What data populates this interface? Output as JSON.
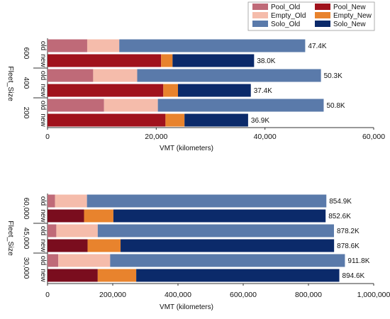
{
  "chart_data": [
    {
      "type": "bar",
      "orientation": "horizontal",
      "stacked": true,
      "title": "",
      "xlabel": "VMT (kilometers)",
      "ylabel": "Fleet_Size",
      "xlim": [
        0,
        60000
      ],
      "xticks": [
        "0",
        "20,000",
        "40,000",
        "60,000"
      ],
      "groups": [
        "600",
        "400",
        "200"
      ],
      "categories": [
        "old",
        "new",
        "old",
        "new",
        "old",
        "new"
      ],
      "legend": {
        "position": "top-right",
        "entries": [
          "Pool_Old",
          "Empty_Old",
          "Solo_Old",
          "Pool_New",
          "Empty_New",
          "Solo_New"
        ]
      },
      "series": [
        {
          "name": "Pool",
          "old_color": "#bf6a78",
          "new_color": "#a0121c",
          "values": [
            7300,
            20900,
            8400,
            21300,
            10400,
            21700
          ]
        },
        {
          "name": "Empty",
          "old_color": "#f5bcab",
          "new_color": "#e8832d",
          "values": [
            5900,
            2100,
            8100,
            2700,
            9900,
            3500
          ]
        },
        {
          "name": "Solo",
          "old_color": "#5a7aaa",
          "new_color": "#0b2a6a",
          "values": [
            34200,
            15000,
            33800,
            13400,
            30500,
            11700
          ]
        }
      ],
      "totals": [
        "47.4K",
        "38.0K",
        "50.3K",
        "37.4K",
        "50.8K",
        "36.9K"
      ]
    },
    {
      "type": "bar",
      "orientation": "horizontal",
      "stacked": true,
      "title": "",
      "xlabel": "VMT (kilometers)",
      "ylabel": "Fleet_Size",
      "xlim": [
        0,
        1000000
      ],
      "xticks": [
        "0",
        "200,000",
        "400,000",
        "600,000",
        "800,000",
        "1,000,000"
      ],
      "groups": [
        "60,000",
        "45,000",
        "30,000"
      ],
      "categories": [
        "old",
        "new",
        "old",
        "new",
        "old",
        "new"
      ],
      "series": [
        {
          "name": "Pool",
          "old_color": "#bf6a78",
          "new_color": "#7a0d1e",
          "values": [
            23000,
            112000,
            27000,
            123000,
            33000,
            154000
          ]
        },
        {
          "name": "Empty",
          "old_color": "#f5bcab",
          "new_color": "#e8832d",
          "values": [
            98000,
            90000,
            127000,
            101000,
            159000,
            118000
          ]
        },
        {
          "name": "Solo",
          "old_color": "#5a7aaa",
          "new_color": "#0b2a6a",
          "values": [
            733900,
            650600,
            724200,
            654600,
            719800,
            622600
          ]
        }
      ],
      "totals": [
        "854.9K",
        "852.6K",
        "878.2K",
        "878.6K",
        "911.8K",
        "894.6K"
      ]
    }
  ]
}
